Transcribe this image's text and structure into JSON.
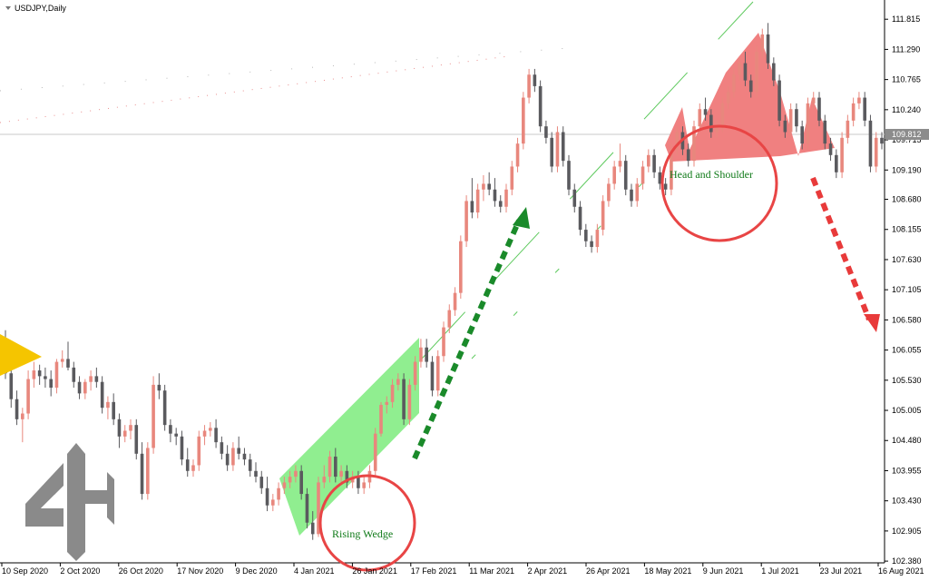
{
  "chart_data": {
    "type": "candlestick",
    "title": "USDJPY,Daily",
    "ylim": [
      102.35,
      112.15
    ],
    "yticks": [
      "111.815",
      "111.290",
      "110.765",
      "110.240",
      "109.715",
      "109.190",
      "108.680",
      "108.155",
      "107.630",
      "107.105",
      "106.580",
      "106.055",
      "105.530",
      "105.005",
      "104.480",
      "103.955",
      "103.430",
      "102.905",
      "102.380"
    ],
    "xticks": [
      "10 Sep 2020",
      "2 Oct 2020",
      "26 Oct 2020",
      "17 Nov 2020",
      "9 Dec 2020",
      "4 Jan 2021",
      "26 Jan 2021",
      "17 Feb 2021",
      "11 Mar 2021",
      "2 Apr 2021",
      "26 Apr 2021",
      "18 May 2021",
      "9 Jun 2021",
      "1 Jul 2021",
      "23 Jul 2021",
      "16 Aug 2021"
    ],
    "current_price": "109.812",
    "colors": {
      "bull": "#e8877d",
      "bear": "#5a5a5e",
      "grid": "#c8c8c8"
    },
    "annotations": [
      {
        "text": "Rising Wedge",
        "color": "#0f7a18"
      },
      {
        "text": "Head and Shoulder",
        "color": "#0f7a18"
      }
    ],
    "candles": [
      [
        106.15,
        106.4,
        105.55,
        105.65
      ],
      [
        105.65,
        105.75,
        105.05,
        105.2
      ],
      [
        105.2,
        105.35,
        104.75,
        104.85
      ],
      [
        104.85,
        105.05,
        104.45,
        104.95
      ],
      [
        104.95,
        105.7,
        104.85,
        105.55
      ],
      [
        105.55,
        105.85,
        105.4,
        105.7
      ],
      [
        105.7,
        105.8,
        105.45,
        105.6
      ],
      [
        105.6,
        105.75,
        105.4,
        105.55
      ],
      [
        105.55,
        105.7,
        105.25,
        105.4
      ],
      [
        105.4,
        105.9,
        105.3,
        105.85
      ],
      [
        105.85,
        106.05,
        105.75,
        105.9
      ],
      [
        105.9,
        106.2,
        105.7,
        105.75
      ],
      [
        105.75,
        105.85,
        105.4,
        105.5
      ],
      [
        105.5,
        105.6,
        105.2,
        105.3
      ],
      [
        105.3,
        105.55,
        105.2,
        105.5
      ],
      [
        105.5,
        105.7,
        105.35,
        105.6
      ],
      [
        105.6,
        105.75,
        105.4,
        105.5
      ],
      [
        105.5,
        105.6,
        104.95,
        105.05
      ],
      [
        105.05,
        105.25,
        104.85,
        105.15
      ],
      [
        105.15,
        105.3,
        104.75,
        104.85
      ],
      [
        104.85,
        104.95,
        104.35,
        104.55
      ],
      [
        104.55,
        104.75,
        104.45,
        104.65
      ],
      [
        104.65,
        104.85,
        104.5,
        104.75
      ],
      [
        104.75,
        104.85,
        104.15,
        104.25
      ],
      [
        104.25,
        104.45,
        103.45,
        103.55
      ],
      [
        103.55,
        104.45,
        103.45,
        104.35
      ],
      [
        104.35,
        105.6,
        104.25,
        105.45
      ],
      [
        105.45,
        105.65,
        105.2,
        105.35
      ],
      [
        105.35,
        105.45,
        104.65,
        104.75
      ],
      [
        104.75,
        104.85,
        104.45,
        104.6
      ],
      [
        104.6,
        104.7,
        104.4,
        104.55
      ],
      [
        104.55,
        104.65,
        104.05,
        104.15
      ],
      [
        104.15,
        104.35,
        103.85,
        103.95
      ],
      [
        103.95,
        104.15,
        103.85,
        104.05
      ],
      [
        104.05,
        104.65,
        103.95,
        104.55
      ],
      [
        104.55,
        104.75,
        104.4,
        104.65
      ],
      [
        104.65,
        104.8,
        104.55,
        104.7
      ],
      [
        104.7,
        104.85,
        104.35,
        104.45
      ],
      [
        104.45,
        104.55,
        104.15,
        104.25
      ],
      [
        104.25,
        104.4,
        103.95,
        104.05
      ],
      [
        104.05,
        104.45,
        103.95,
        104.35
      ],
      [
        104.35,
        104.55,
        104.15,
        104.25
      ],
      [
        104.25,
        104.35,
        104.05,
        104.15
      ],
      [
        104.15,
        104.25,
        103.85,
        103.95
      ],
      [
        103.95,
        104.1,
        103.75,
        103.85
      ],
      [
        103.85,
        103.95,
        103.55,
        103.65
      ],
      [
        103.65,
        103.85,
        103.25,
        103.35
      ],
      [
        103.35,
        103.55,
        103.25,
        103.45
      ],
      [
        103.45,
        103.75,
        103.35,
        103.65
      ],
      [
        103.65,
        103.85,
        103.55,
        103.75
      ],
      [
        103.75,
        103.95,
        103.65,
        103.85
      ],
      [
        103.85,
        104.05,
        103.75,
        103.95
      ],
      [
        103.95,
        104.05,
        103.45,
        103.55
      ],
      [
        103.55,
        103.65,
        102.95,
        103.05
      ],
      [
        103.05,
        103.25,
        102.75,
        102.85
      ],
      [
        102.85,
        103.85,
        102.8,
        103.75
      ],
      [
        103.75,
        104.05,
        103.65,
        103.85
      ],
      [
        103.85,
        104.3,
        103.75,
        104.2
      ],
      [
        104.2,
        104.35,
        103.75,
        103.85
      ],
      [
        103.85,
        104.05,
        103.75,
        103.95
      ],
      [
        103.95,
        104.05,
        103.65,
        103.75
      ],
      [
        103.75,
        103.95,
        103.65,
        103.85
      ],
      [
        103.85,
        103.95,
        103.55,
        103.65
      ],
      [
        103.65,
        103.85,
        103.55,
        103.75
      ],
      [
        103.75,
        104.05,
        103.65,
        103.95
      ],
      [
        103.95,
        104.7,
        103.85,
        104.6
      ],
      [
        104.6,
        105.15,
        104.55,
        105.1
      ],
      [
        105.1,
        105.25,
        104.95,
        105.15
      ],
      [
        105.15,
        105.55,
        105.05,
        105.45
      ],
      [
        105.45,
        105.65,
        105.35,
        105.55
      ],
      [
        105.55,
        105.65,
        104.75,
        104.85
      ],
      [
        104.85,
        105.55,
        104.75,
        105.45
      ],
      [
        105.45,
        105.95,
        105.35,
        105.85
      ],
      [
        105.85,
        106.25,
        105.75,
        106.1
      ],
      [
        106.1,
        106.25,
        105.75,
        105.85
      ],
      [
        105.85,
        105.95,
        105.25,
        105.35
      ],
      [
        105.35,
        106.05,
        105.25,
        105.95
      ],
      [
        105.95,
        106.55,
        105.85,
        106.45
      ],
      [
        106.45,
        106.85,
        106.35,
        106.75
      ],
      [
        106.75,
        107.15,
        106.65,
        107.05
      ],
      [
        107.05,
        108.05,
        106.95,
        107.95
      ],
      [
        107.95,
        108.75,
        107.85,
        108.65
      ],
      [
        108.65,
        109.05,
        108.35,
        108.45
      ],
      [
        108.45,
        108.95,
        108.35,
        108.85
      ],
      [
        108.85,
        109.1,
        108.65,
        108.95
      ],
      [
        108.95,
        109.15,
        108.75,
        108.85
      ],
      [
        108.85,
        109.05,
        108.55,
        108.65
      ],
      [
        108.65,
        108.75,
        108.45,
        108.55
      ],
      [
        108.55,
        108.95,
        108.45,
        108.85
      ],
      [
        108.85,
        109.35,
        108.75,
        109.25
      ],
      [
        109.25,
        109.75,
        109.15,
        109.65
      ],
      [
        109.65,
        110.55,
        109.55,
        110.45
      ],
      [
        110.45,
        110.95,
        110.35,
        110.85
      ],
      [
        110.85,
        110.95,
        110.55,
        110.65
      ],
      [
        110.65,
        110.75,
        109.85,
        109.95
      ],
      [
        109.95,
        110.05,
        109.65,
        109.75
      ],
      [
        109.75,
        109.85,
        109.15,
        109.25
      ],
      [
        109.25,
        109.95,
        109.15,
        109.85
      ],
      [
        109.85,
        109.95,
        109.25,
        109.35
      ],
      [
        109.35,
        109.45,
        108.75,
        108.85
      ],
      [
        108.85,
        108.95,
        108.45,
        108.55
      ],
      [
        108.55,
        108.65,
        108.05,
        108.15
      ],
      [
        108.15,
        108.25,
        107.85,
        107.95
      ],
      [
        107.95,
        108.05,
        107.75,
        107.85
      ],
      [
        107.85,
        108.25,
        107.75,
        108.15
      ],
      [
        108.15,
        108.75,
        108.05,
        108.65
      ],
      [
        108.65,
        109.05,
        108.55,
        108.95
      ],
      [
        108.95,
        109.35,
        108.85,
        109.25
      ],
      [
        109.25,
        109.65,
        109.15,
        109.35
      ],
      [
        109.35,
        109.45,
        108.75,
        108.85
      ],
      [
        108.85,
        108.95,
        108.55,
        108.65
      ],
      [
        108.65,
        109.05,
        108.55,
        108.95
      ],
      [
        108.95,
        109.35,
        108.85,
        109.25
      ],
      [
        109.25,
        109.55,
        109.15,
        109.45
      ],
      [
        109.45,
        109.55,
        109.05,
        109.15
      ],
      [
        109.15,
        109.25,
        108.85,
        108.95
      ],
      [
        108.95,
        109.05,
        108.75,
        108.85
      ],
      [
        108.85,
        109.65,
        108.75,
        109.55
      ],
      [
        109.55,
        109.95,
        109.45,
        109.85
      ],
      [
        109.85,
        109.95,
        109.45,
        109.55
      ],
      [
        109.55,
        109.65,
        109.25,
        109.35
      ],
      [
        109.35,
        110.05,
        109.25,
        109.95
      ],
      [
        109.95,
        110.35,
        109.85,
        110.25
      ],
      [
        110.25,
        110.45,
        110.05,
        110.15
      ],
      [
        110.15,
        110.25,
        109.75,
        109.85
      ],
      [
        109.85,
        110.05,
        109.75,
        109.95
      ],
      [
        109.95,
        110.45,
        109.85,
        110.35
      ],
      [
        110.35,
        110.65,
        110.25,
        110.55
      ],
      [
        110.55,
        110.95,
        110.45,
        110.85
      ],
      [
        110.85,
        111.15,
        110.75,
        111.05
      ],
      [
        111.05,
        111.25,
        110.65,
        110.75
      ],
      [
        110.75,
        110.85,
        110.45,
        110.55
      ],
      [
        110.55,
        111.35,
        110.45,
        111.25
      ],
      [
        111.25,
        111.65,
        111.15,
        111.55
      ],
      [
        111.55,
        111.75,
        110.95,
        111.05
      ],
      [
        111.05,
        111.15,
        110.65,
        110.75
      ],
      [
        110.75,
        110.85,
        109.95,
        110.05
      ],
      [
        110.05,
        110.15,
        109.75,
        109.85
      ],
      [
        109.85,
        110.35,
        109.75,
        110.25
      ],
      [
        110.25,
        110.35,
        109.85,
        109.95
      ],
      [
        109.95,
        110.05,
        109.55,
        109.65
      ],
      [
        109.65,
        110.45,
        109.55,
        110.35
      ],
      [
        110.35,
        110.55,
        110.25,
        110.45
      ],
      [
        110.45,
        110.55,
        109.95,
        110.05
      ],
      [
        110.05,
        110.15,
        109.55,
        109.65
      ],
      [
        109.65,
        109.75,
        109.35,
        109.45
      ],
      [
        109.45,
        109.55,
        109.05,
        109.15
      ],
      [
        109.15,
        109.85,
        109.05,
        109.75
      ],
      [
        109.75,
        110.15,
        109.65,
        110.05
      ],
      [
        110.05,
        110.45,
        109.95,
        110.35
      ],
      [
        110.35,
        110.55,
        110.25,
        110.45
      ],
      [
        110.45,
        110.55,
        109.95,
        110.05
      ],
      [
        110.05,
        110.15,
        109.15,
        109.25
      ],
      [
        109.25,
        109.85,
        109.15,
        109.75
      ],
      [
        109.75,
        109.85,
        109.55,
        109.65
      ]
    ]
  },
  "logo": {
    "text": "4H"
  }
}
